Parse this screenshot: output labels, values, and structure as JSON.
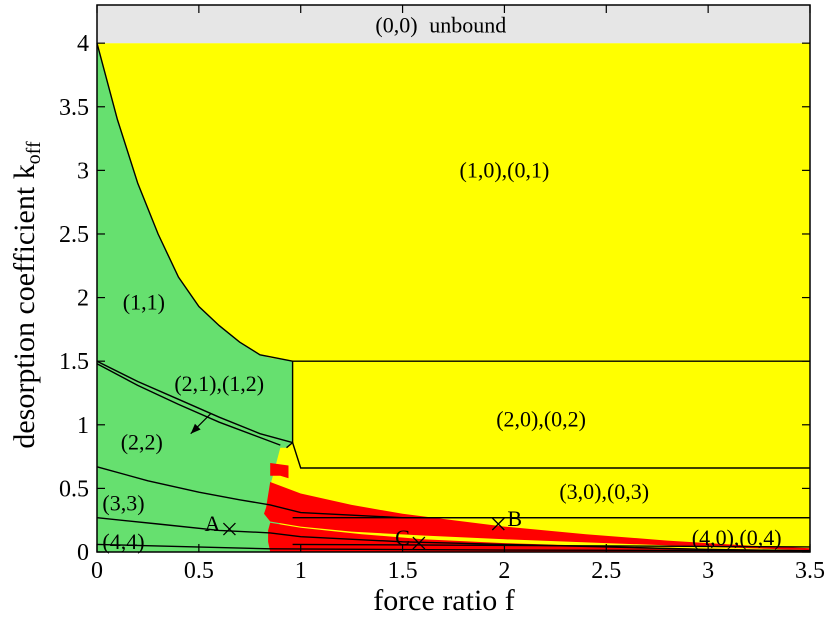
{
  "chart_data": {
    "type": "area",
    "title": "",
    "xlabel": "force ratio f",
    "ylabel_main": "desorption coefficient k",
    "ylabel_sub": "off",
    "xlim": [
      0,
      3.5
    ],
    "ylim": [
      0,
      4.3
    ],
    "x_ticks": [
      "0",
      "0.5",
      "1",
      "1.5",
      "2",
      "2.5",
      "3",
      "3.5"
    ],
    "x_tick_values": [
      0,
      0.5,
      1,
      1.5,
      2,
      2.5,
      3,
      3.5
    ],
    "y_ticks": [
      "0",
      "0.5",
      "1",
      "1.5",
      "2",
      "2.5",
      "3",
      "3.5",
      "4"
    ],
    "y_tick_values": [
      0,
      0.5,
      1,
      1.5,
      2,
      2.5,
      3,
      3.5,
      4
    ],
    "grid": false,
    "colors": {
      "unbound": "#e6e6e6",
      "asymmetric": "#ffff00",
      "symmetric": "#66e06f",
      "coexistence": "#ff0000",
      "line": "#000000"
    },
    "regions": [
      {
        "name": "unbound",
        "label": "(0,0)   unbound",
        "color": "unbound",
        "polygon": [
          [
            0,
            4
          ],
          [
            3.5,
            4
          ],
          [
            3.5,
            4.3
          ],
          [
            0,
            4.3
          ]
        ]
      },
      {
        "name": "asym",
        "label": "",
        "color": "asymmetric",
        "polygon": [
          [
            0,
            0
          ],
          [
            3.5,
            0
          ],
          [
            3.5,
            4
          ],
          [
            0,
            4
          ]
        ]
      },
      {
        "name": "symmetric",
        "label": "",
        "color": "symmetric",
        "polygon": [
          [
            0,
            0
          ],
          [
            0,
            4
          ],
          [
            0.1,
            3.4
          ],
          [
            0.2,
            2.9
          ],
          [
            0.3,
            2.5
          ],
          [
            0.4,
            2.16
          ],
          [
            0.5,
            1.93
          ],
          [
            0.6,
            1.78
          ],
          [
            0.7,
            1.65
          ],
          [
            0.8,
            1.55
          ],
          [
            0.85,
            1.525
          ],
          [
            0.96,
            1.5
          ],
          [
            0.96,
            0.86
          ],
          [
            0.93,
            0.82
          ],
          [
            0.9,
            0.82
          ],
          [
            0.85,
            0.52
          ],
          [
            0.83,
            0.35
          ],
          [
            0.96,
            0.1
          ],
          [
            0.96,
            0
          ],
          [
            0,
            0
          ]
        ]
      },
      {
        "name": "coexist-1",
        "label": "",
        "color": "coexistence",
        "polygon": [
          [
            0.85,
            0.7
          ],
          [
            0.94,
            0.68
          ],
          [
            0.94,
            0.58
          ],
          [
            0.9,
            0.6
          ],
          [
            0.85,
            0.6
          ]
        ]
      },
      {
        "name": "coexist-2",
        "label": "",
        "color": "coexistence",
        "polygon": [
          [
            0.85,
            0.55
          ],
          [
            1.0,
            0.46
          ],
          [
            1.25,
            0.37
          ],
          [
            1.5,
            0.3
          ],
          [
            1.75,
            0.25
          ],
          [
            2.0,
            0.2
          ],
          [
            2.4,
            0.14
          ],
          [
            2.8,
            0.09
          ],
          [
            3.2,
            0.05
          ],
          [
            3.5,
            0.03
          ],
          [
            3.5,
            0.015
          ],
          [
            3.0,
            0.04
          ],
          [
            2.5,
            0.07
          ],
          [
            2.0,
            0.1
          ],
          [
            1.6,
            0.13
          ],
          [
            1.25,
            0.16
          ],
          [
            1.0,
            0.2
          ],
          [
            0.85,
            0.24
          ],
          [
            0.82,
            0.3
          ],
          [
            0.83,
            0.35
          ]
        ]
      },
      {
        "name": "coexist-3",
        "label": "",
        "color": "coexistence",
        "polygon": [
          [
            0.85,
            0.23
          ],
          [
            1.0,
            0.19
          ],
          [
            1.3,
            0.14
          ],
          [
            1.6,
            0.1
          ],
          [
            2.0,
            0.07
          ],
          [
            2.5,
            0.045
          ],
          [
            3.0,
            0.025
          ],
          [
            3.5,
            0.015
          ],
          [
            3.5,
            0.0
          ],
          [
            2.5,
            0.0
          ],
          [
            1.5,
            0.0
          ],
          [
            1.0,
            0.0
          ],
          [
            0.85,
            0.0
          ],
          [
            0.84,
            0.08
          ],
          [
            0.84,
            0.17
          ]
        ]
      }
    ],
    "lines": [
      {
        "name": "boundary-11",
        "points": [
          [
            0,
            4
          ],
          [
            0.1,
            3.4
          ],
          [
            0.2,
            2.9
          ],
          [
            0.3,
            2.5
          ],
          [
            0.4,
            2.16
          ],
          [
            0.5,
            1.93
          ],
          [
            0.6,
            1.78
          ],
          [
            0.7,
            1.65
          ],
          [
            0.8,
            1.55
          ],
          [
            0.96,
            1.5
          ],
          [
            3.5,
            1.5
          ]
        ]
      },
      {
        "name": "boundary-vertical",
        "points": [
          [
            0.96,
            1.5
          ],
          [
            0.96,
            0.86
          ],
          [
            0.93,
            0.82
          ]
        ]
      },
      {
        "name": "boundary-21-upper",
        "points": [
          [
            0,
            1.5
          ],
          [
            0.2,
            1.34
          ],
          [
            0.4,
            1.2
          ],
          [
            0.6,
            1.06
          ],
          [
            0.8,
            0.93
          ],
          [
            0.96,
            0.86
          ],
          [
            1.0,
            0.66
          ],
          [
            3.5,
            0.66
          ]
        ]
      },
      {
        "name": "boundary-21-lower",
        "points": [
          [
            0,
            1.48
          ],
          [
            0.2,
            1.31
          ],
          [
            0.4,
            1.16
          ],
          [
            0.6,
            1.02
          ],
          [
            0.8,
            0.9
          ],
          [
            0.9,
            0.84
          ]
        ]
      },
      {
        "name": "boundary-22",
        "points": [
          [
            0,
            0.67
          ],
          [
            0.25,
            0.56
          ],
          [
            0.5,
            0.47
          ],
          [
            0.7,
            0.41
          ],
          [
            0.85,
            0.37
          ],
          [
            1.0,
            0.31
          ],
          [
            1.5,
            0.27
          ],
          [
            3.5,
            0.27
          ]
        ]
      },
      {
        "name": "boundary-33",
        "points": [
          [
            0,
            0.27
          ],
          [
            0.3,
            0.22
          ],
          [
            0.6,
            0.17
          ],
          [
            0.85,
            0.15
          ],
          [
            1.0,
            0.12
          ],
          [
            1.5,
            0.08
          ],
          [
            2.0,
            0.06
          ],
          [
            2.5,
            0.04
          ],
          [
            3.0,
            0.02
          ],
          [
            3.5,
            0.01
          ]
        ]
      },
      {
        "name": "boundary-44",
        "points": [
          [
            0,
            0.06
          ],
          [
            0.85,
            0.025
          ],
          [
            2.0,
            0.015
          ],
          [
            3.5,
            0.01
          ]
        ]
      },
      {
        "name": "boundary-asym-30",
        "points": [
          [
            0.96,
            0.27
          ],
          [
            3.5,
            0.27
          ]
        ]
      },
      {
        "name": "boundary-asym-40",
        "points": [
          [
            0.96,
            0.06
          ],
          [
            3.5,
            0.04
          ]
        ]
      }
    ],
    "region_labels": [
      {
        "text": "(0,0)",
        "x": 1.47,
        "y": 4.14
      },
      {
        "text": "unbound",
        "x": 1.82,
        "y": 4.14
      },
      {
        "text": "(1,0),(0,1)",
        "x": 2.0,
        "y": 3.0
      },
      {
        "text": "(1,1)",
        "x": 0.23,
        "y": 1.96
      },
      {
        "text": "(2,1),(1,2)",
        "x": 0.6,
        "y": 1.32
      },
      {
        "text": "(2,0),(0,2)",
        "x": 2.18,
        "y": 1.04
      },
      {
        "text": "(2,2)",
        "x": 0.22,
        "y": 0.86
      },
      {
        "text": "(3,0),(0,3)",
        "x": 2.49,
        "y": 0.47
      },
      {
        "text": "(3,3)",
        "x": 0.13,
        "y": 0.38
      },
      {
        "text": "(4,4)",
        "x": 0.13,
        "y": 0.08
      },
      {
        "text": "(4,0),(0,4)",
        "x": 3.14,
        "y": 0.11
      }
    ],
    "markers": [
      {
        "label": "A",
        "x": 0.65,
        "y": 0.18,
        "label_side": "left"
      },
      {
        "label": "B",
        "x": 1.97,
        "y": 0.22,
        "label_side": "right"
      },
      {
        "label": "C",
        "x": 1.58,
        "y": 0.07,
        "label_side": "left"
      }
    ],
    "arrow": {
      "from": [
        0.56,
        1.09
      ],
      "to": [
        0.46,
        0.93
      ]
    }
  }
}
